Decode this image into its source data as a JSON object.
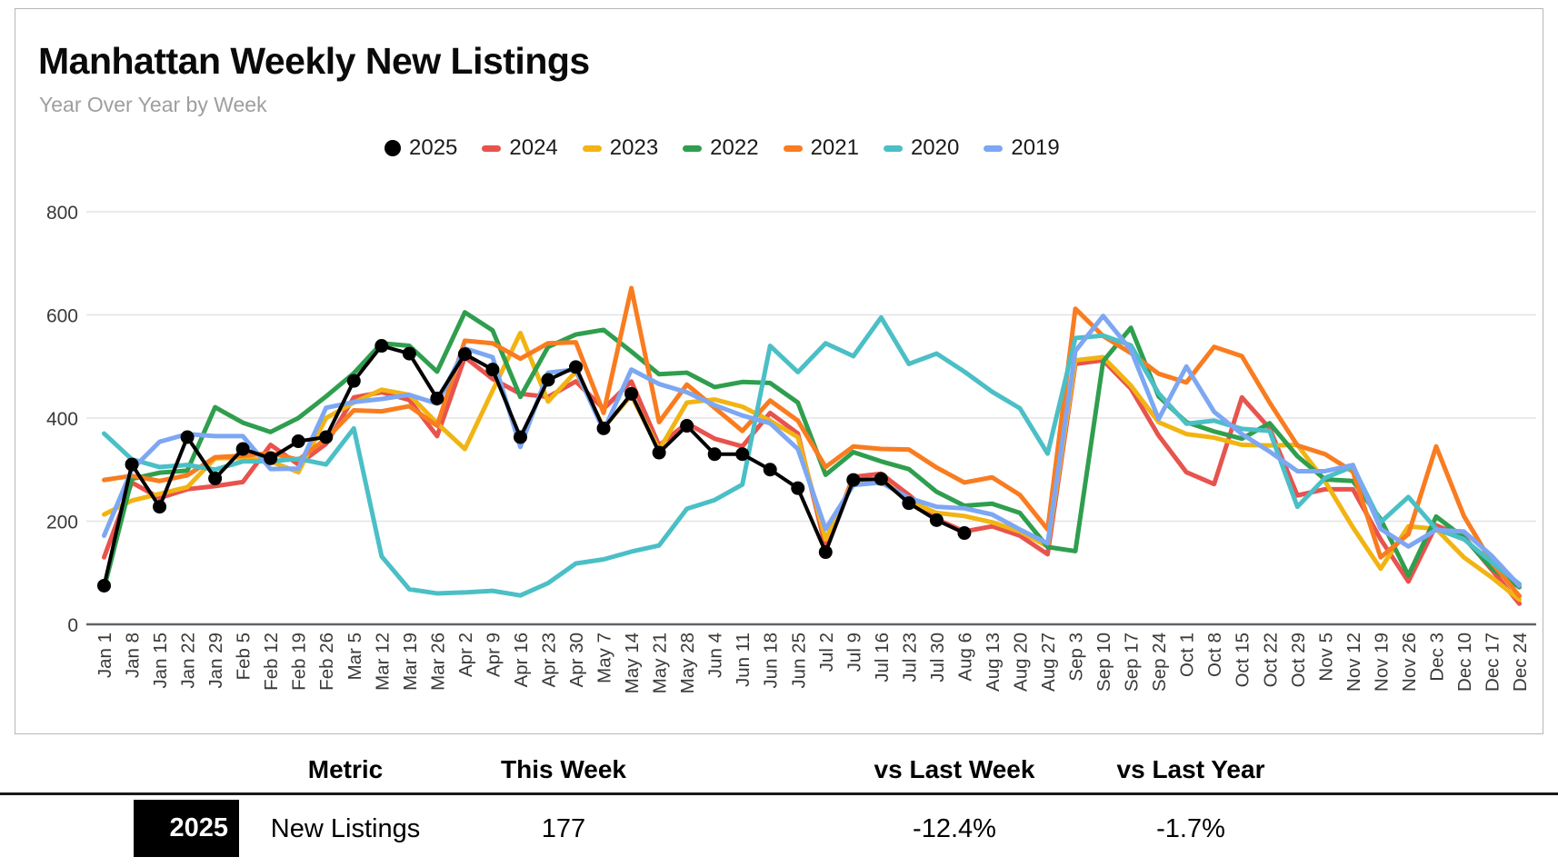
{
  "header": {
    "title": "Manhattan Weekly New Listings",
    "subtitle": "Year Over Year by Week"
  },
  "chart_data": {
    "type": "line",
    "title": "Manhattan Weekly New Listings",
    "subtitle": "Year Over Year by Week",
    "xlabel": "",
    "ylabel": "",
    "ylim": [
      0,
      800
    ],
    "yticks": [
      0,
      200,
      400,
      600,
      800
    ],
    "grid": true,
    "legend_position": "top",
    "categories": [
      "Jan 1",
      "Jan 8",
      "Jan 15",
      "Jan 22",
      "Jan 29",
      "Feb 5",
      "Feb 12",
      "Feb 19",
      "Feb 26",
      "Mar 5",
      "Mar 12",
      "Mar 19",
      "Mar 26",
      "Apr 2",
      "Apr 9",
      "Apr 16",
      "Apr 23",
      "Apr 30",
      "May 7",
      "May 14",
      "May 21",
      "May 28",
      "Jun 4",
      "Jun 11",
      "Jun 18",
      "Jun 25",
      "Jul 2",
      "Jul 9",
      "Jul 16",
      "Jul 23",
      "Jul 30",
      "Aug 6",
      "Aug 13",
      "Aug 20",
      "Aug 27",
      "Sep 3",
      "Sep 10",
      "Sep 17",
      "Sep 24",
      "Oct 1",
      "Oct 8",
      "Oct 15",
      "Oct 22",
      "Oct 29",
      "Nov 5",
      "Nov 12",
      "Nov 19",
      "Nov 26",
      "Dec 3",
      "Dec 10",
      "Dec 17",
      "Dec 24"
    ],
    "series": [
      {
        "name": "2025",
        "color": "#000000",
        "marker": "circle",
        "values": [
          75,
          310,
          228,
          363,
          283,
          340,
          322,
          355,
          363,
          472,
          540,
          525,
          438,
          524,
          494,
          363,
          474,
          499,
          380,
          447,
          333,
          385,
          330,
          330,
          300,
          264,
          140,
          280,
          282,
          235,
          202,
          177
        ]
      },
      {
        "name": "2024",
        "color": "#e8534e",
        "marker": "dash",
        "values": [
          130,
          275,
          245,
          262,
          268,
          276,
          348,
          310,
          350,
          440,
          450,
          435,
          365,
          518,
          476,
          447,
          441,
          471,
          418,
          471,
          347,
          390,
          360,
          345,
          410,
          370,
          150,
          286,
          292,
          251,
          204,
          180,
          190,
          172,
          136,
          505,
          512,
          457,
          366,
          295,
          272,
          440,
          380,
          250,
          262,
          262,
          165,
          83,
          192,
          170,
          106,
          40
        ]
      },
      {
        "name": "2023",
        "color": "#f2b413",
        "marker": "dash",
        "values": [
          213,
          240,
          253,
          266,
          322,
          323,
          316,
          295,
          400,
          430,
          455,
          445,
          390,
          340,
          453,
          565,
          432,
          490,
          382,
          444,
          338,
          430,
          436,
          422,
          395,
          363,
          165,
          278,
          281,
          239,
          216,
          210,
          198,
          180,
          151,
          512,
          518,
          463,
          392,
          369,
          362,
          348,
          347,
          348,
          277,
          188,
          108,
          190,
          185,
          130,
          91,
          48
        ]
      },
      {
        "name": "2022",
        "color": "#2f9e4e",
        "marker": "dash",
        "values": [
          70,
          282,
          294,
          298,
          421,
          391,
          373,
          400,
          442,
          487,
          545,
          540,
          490,
          605,
          570,
          441,
          538,
          562,
          571,
          529,
          485,
          488,
          460,
          470,
          468,
          430,
          290,
          334,
          316,
          301,
          257,
          230,
          234,
          216,
          150,
          142,
          510,
          575,
          442,
          392,
          374,
          360,
          390,
          326,
          281,
          278,
          204,
          95,
          209,
          168,
          109,
          72
        ]
      },
      {
        "name": "2021",
        "color": "#f97c20",
        "marker": "dash",
        "values": [
          280,
          288,
          278,
          289,
          324,
          327,
          332,
          319,
          360,
          415,
          413,
          423,
          385,
          550,
          545,
          515,
          545,
          547,
          410,
          652,
          392,
          465,
          420,
          375,
          434,
          395,
          305,
          345,
          340,
          339,
          304,
          275,
          285,
          251,
          184,
          612,
          559,
          526,
          486,
          469,
          538,
          520,
          430,
          347,
          330,
          296,
          130,
          175,
          345,
          210,
          120,
          55
        ]
      },
      {
        "name": "2020",
        "color": "#4bbfc6",
        "marker": "dash",
        "values": [
          370,
          320,
          305,
          309,
          300,
          316,
          316,
          321,
          310,
          380,
          132,
          68,
          60,
          62,
          65,
          56,
          80,
          118,
          126,
          141,
          153,
          224,
          241,
          271,
          540,
          489,
          545,
          520,
          595,
          505,
          525,
          490,
          451,
          419,
          331,
          555,
          560,
          541,
          448,
          389,
          395,
          379,
          375,
          228,
          284,
          306,
          198,
          247,
          185,
          165,
          121,
          78
        ]
      },
      {
        "name": "2019",
        "color": "#7da7f3",
        "marker": "dash",
        "values": [
          172,
          300,
          354,
          369,
          365,
          365,
          301,
          302,
          420,
          431,
          437,
          445,
          428,
          535,
          518,
          344,
          488,
          494,
          376,
          494,
          466,
          450,
          425,
          405,
          390,
          340,
          185,
          270,
          275,
          245,
          228,
          225,
          213,
          184,
          157,
          530,
          598,
          532,
          398,
          500,
          412,
          369,
          335,
          297,
          297,
          309,
          185,
          151,
          183,
          180,
          133,
          75
        ]
      }
    ]
  },
  "table": {
    "headers": [
      "Metric",
      "This Week",
      "vs Last Week",
      "vs Last Year"
    ],
    "row": {
      "year": "2025",
      "metric": "New Listings",
      "this_week": "177",
      "vs_last_week": "-12.4%",
      "vs_last_year": "-1.7%"
    }
  }
}
